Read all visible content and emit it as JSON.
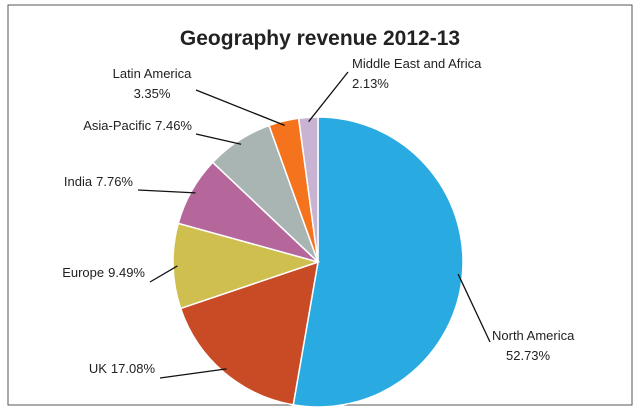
{
  "chart_data": {
    "type": "pie",
    "title": "Geography revenue 2012-13",
    "categories": [
      "North America",
      "UK",
      "Europe",
      "India",
      "Asia-Pacific",
      "Latin America",
      "Middle East and Africa"
    ],
    "values": [
      52.73,
      17.08,
      9.49,
      7.76,
      7.46,
      3.35,
      2.13
    ],
    "value_labels": [
      "52.73%",
      "17.08%",
      "9.49%",
      "7.76%",
      "7.46%",
      "3.35%",
      "2.13%"
    ],
    "colors": [
      "#29abe2",
      "#c84b25",
      "#cfbf4f",
      "#b5679b",
      "#a8b5b3",
      "#f5731c",
      "#c9b3d3"
    ]
  }
}
